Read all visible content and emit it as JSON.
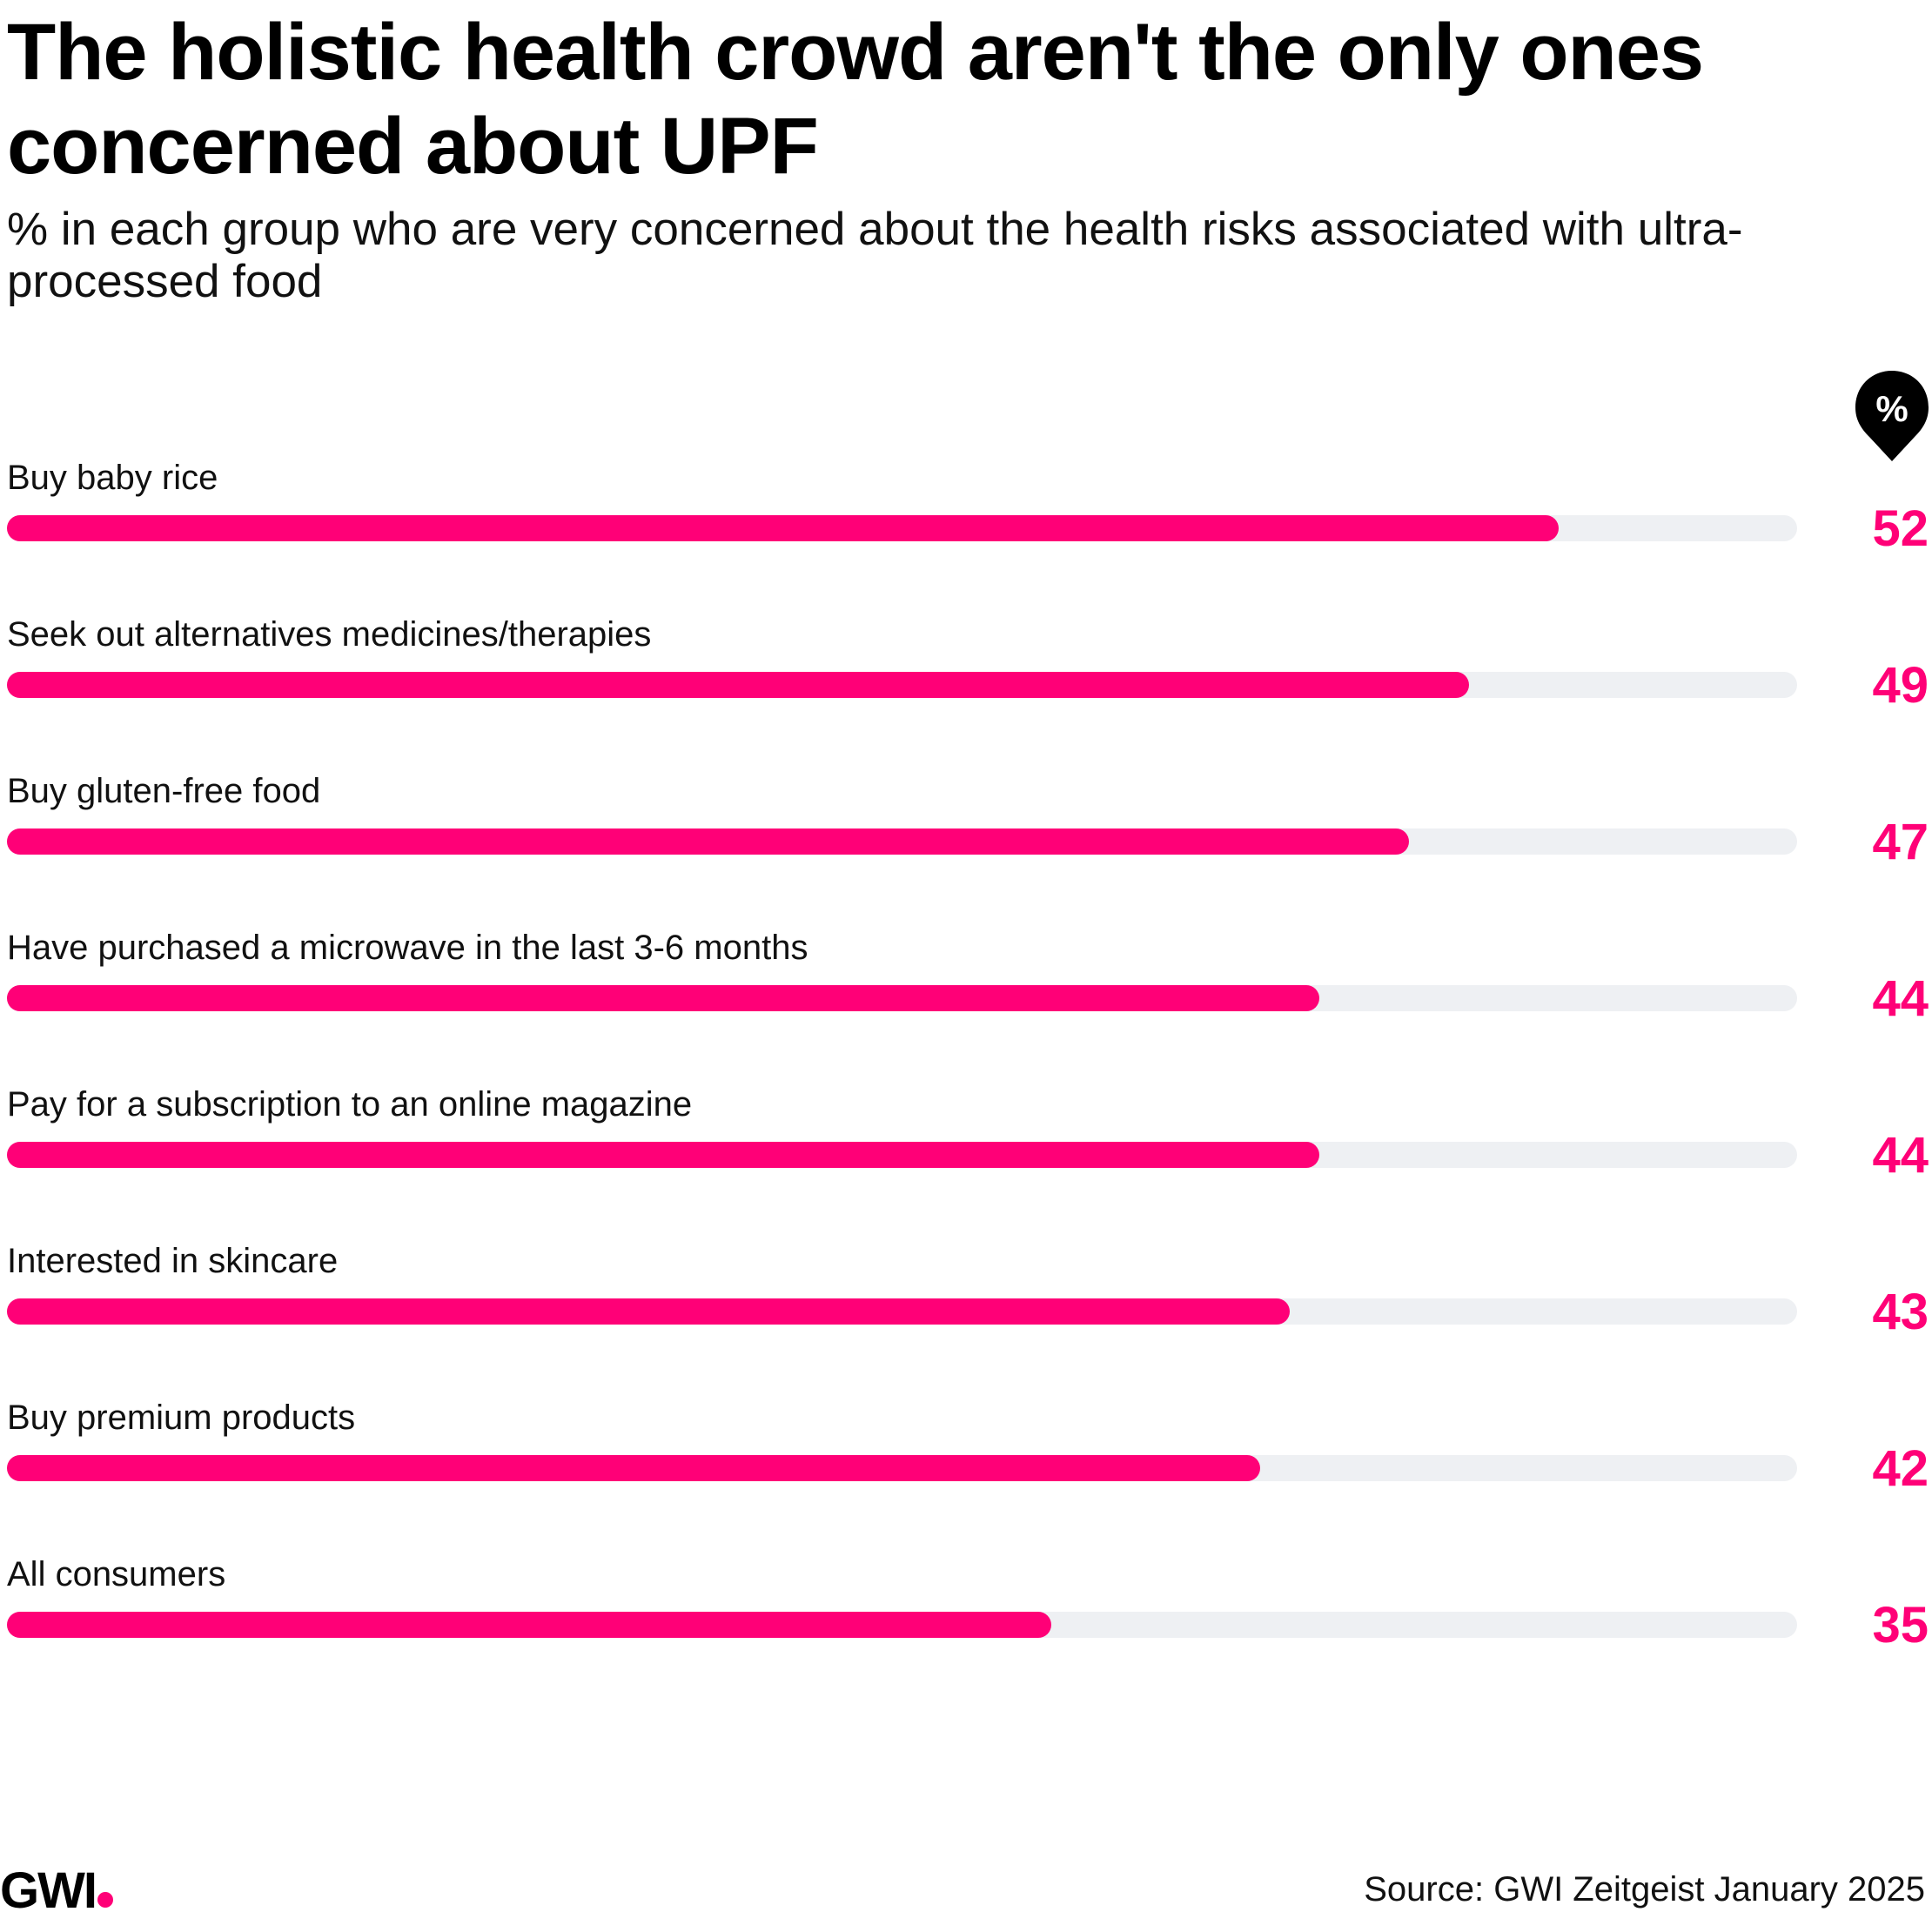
{
  "header": {
    "title": "The holistic health crowd aren't the only ones concerned about UPF",
    "subtitle": "% in each group who are very concerned about the health risks associated with ultra-processed food",
    "unit_badge": "%"
  },
  "colors": {
    "accent": "#ff0077",
    "track": "#eef0f3",
    "text": "#000000"
  },
  "chart_data": {
    "type": "bar",
    "orientation": "horizontal",
    "categories": [
      "Buy baby rice",
      "Seek out alternatives medicines/therapies",
      "Buy gluten-free food",
      "Have purchased a microwave in the last 3-6 months",
      "Pay for a subscription to an online magazine",
      "Interested in skincare",
      "Buy premium products",
      "All consumers"
    ],
    "values": [
      52,
      49,
      47,
      44,
      44,
      43,
      42,
      35
    ],
    "value_labels": [
      "52",
      "49",
      "47",
      "44",
      "44",
      "43",
      "42",
      "35"
    ],
    "xlim": [
      0,
      60
    ],
    "grid": false,
    "legend": "none"
  },
  "footer": {
    "logo": "GWI",
    "source": "Source: GWI Zeitgeist January 2025"
  }
}
